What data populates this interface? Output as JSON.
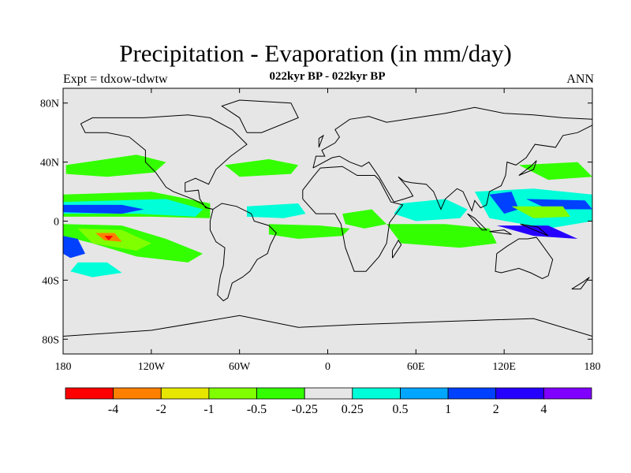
{
  "title": "Precipitation - Evaporation (in mm/day)",
  "subtitle": "022kyr BP - 022kyr BP",
  "left_label": "Expt = tdxow-tdwtw",
  "right_label": "ANN",
  "colors": {
    "ocean_land": "#e6e6e6",
    "coast": "#000000",
    "bins": [
      "#ff0000",
      "#ff8000",
      "#e6e600",
      "#80ff00",
      "#33ff00",
      "#e6e6e6",
      "#00ffd9",
      "#00a6ff",
      "#0040ff",
      "#2600ff",
      "#8000ff"
    ]
  },
  "lat_ticks": [
    "80N",
    "40N",
    "0",
    "40S",
    "80S"
  ],
  "lon_ticks": [
    "180",
    "120W",
    "60W",
    "0",
    "60E",
    "120E",
    "180"
  ],
  "colorbar_labels": [
    "-4",
    "-2",
    "-1",
    "-0.5",
    "-0.25",
    "0.25",
    "0.5",
    "1",
    "2",
    "4"
  ],
  "regions": [
    {
      "name": "n-pacific-band",
      "bin": 4,
      "lon": [
        -178,
        -130,
        -110,
        -118,
        -150,
        -178
      ],
      "lat": [
        38,
        45,
        40,
        33,
        30,
        32
      ]
    },
    {
      "name": "pacific-itcz-green",
      "bin": 4,
      "lon": [
        -180,
        -120,
        -80,
        -80,
        -120,
        -180
      ],
      "lat": [
        18,
        20,
        12,
        2,
        3,
        3
      ]
    },
    {
      "name": "pacific-itcz-cyan",
      "bin": 6,
      "lon": [
        -180,
        -110,
        -85,
        -90,
        -130,
        -180
      ],
      "lat": [
        13,
        15,
        8,
        3,
        5,
        5
      ]
    },
    {
      "name": "pacific-itcz-blue",
      "bin": 8,
      "lon": [
        -180,
        -140,
        -125,
        -140,
        -180
      ],
      "lat": [
        11,
        11,
        8,
        5,
        6
      ]
    },
    {
      "name": "spcz-green",
      "bin": 4,
      "lon": [
        -180,
        -140,
        -110,
        -85,
        -95,
        -130,
        -160,
        -180
      ],
      "lat": [
        -2,
        -3,
        -12,
        -22,
        -28,
        -24,
        -15,
        -10
      ]
    },
    {
      "name": "spcz-yellow",
      "bin": 3,
      "lon": [
        -170,
        -140,
        -120,
        -130,
        -160
      ],
      "lat": [
        -5,
        -6,
        -15,
        -20,
        -15
      ]
    },
    {
      "name": "spcz-orange",
      "bin": 1,
      "lon": [
        -158,
        -145,
        -140,
        -152
      ],
      "lat": [
        -8,
        -8,
        -14,
        -13
      ]
    },
    {
      "name": "spcz-red",
      "bin": 0,
      "lon": [
        -152,
        -146,
        -149
      ],
      "lat": [
        -10,
        -10,
        -13
      ]
    },
    {
      "name": "sw-pacific-blue",
      "bin": 8,
      "lon": [
        -180,
        -170,
        -165,
        -175,
        -180
      ],
      "lat": [
        -10,
        -12,
        -22,
        -25,
        -22
      ]
    },
    {
      "name": "s-pacific-cyan",
      "bin": 6,
      "lon": [
        -170,
        -150,
        -140,
        -160,
        -175
      ],
      "lat": [
        -28,
        -28,
        -35,
        -38,
        -34
      ]
    },
    {
      "name": "atlantic-itcz",
      "bin": 6,
      "lon": [
        -55,
        -20,
        -15,
        -30,
        -55
      ],
      "lat": [
        10,
        12,
        5,
        2,
        3
      ]
    },
    {
      "name": "s-atlantic-green",
      "bin": 4,
      "lon": [
        -40,
        -5,
        15,
        10,
        -20,
        -40
      ],
      "lat": [
        -2,
        -3,
        -5,
        -10,
        -12,
        -9
      ]
    },
    {
      "name": "n-atlantic-green",
      "bin": 4,
      "lon": [
        -70,
        -40,
        -20,
        -25,
        -60
      ],
      "lat": [
        38,
        42,
        38,
        32,
        30
      ]
    },
    {
      "name": "indian-ocean-cyan",
      "bin": 6,
      "lon": [
        50,
        80,
        95,
        90,
        60,
        45
      ],
      "lat": [
        12,
        15,
        8,
        2,
        0,
        5
      ]
    },
    {
      "name": "indian-ocean-green",
      "bin": 4,
      "lon": [
        40,
        80,
        110,
        115,
        90,
        50
      ],
      "lat": [
        -2,
        -2,
        -5,
        -15,
        -18,
        -15
      ]
    },
    {
      "name": "warm-pool-cyan",
      "bin": 6,
      "lon": [
        100,
        140,
        180,
        180,
        150,
        110
      ],
      "lat": [
        20,
        22,
        18,
        0,
        -5,
        2
      ]
    },
    {
      "name": "warm-pool-blue",
      "bin": 8,
      "lon": [
        110,
        125,
        130,
        120
      ],
      "lat": [
        18,
        20,
        8,
        5
      ]
    },
    {
      "name": "nw-pacific-blue",
      "bin": 8,
      "lon": [
        135,
        175,
        180,
        150
      ],
      "lat": [
        15,
        14,
        8,
        8
      ]
    },
    {
      "name": "nw-pacific-yellow",
      "bin": 3,
      "lon": [
        125,
        160,
        165,
        140
      ],
      "lat": [
        10,
        10,
        3,
        2
      ]
    },
    {
      "name": "kuroshio-green",
      "bin": 4,
      "lon": [
        130,
        170,
        180,
        150
      ],
      "lat": [
        38,
        40,
        30,
        28
      ]
    },
    {
      "name": "maritime-blue",
      "bin": 9,
      "lon": [
        115,
        150,
        170,
        140
      ],
      "lat": [
        -3,
        -3,
        -12,
        -10
      ]
    },
    {
      "name": "africa-green",
      "bin": 4,
      "lon": [
        10,
        30,
        40,
        25,
        12
      ],
      "lat": [
        5,
        8,
        -2,
        -5,
        -2
      ]
    }
  ]
}
